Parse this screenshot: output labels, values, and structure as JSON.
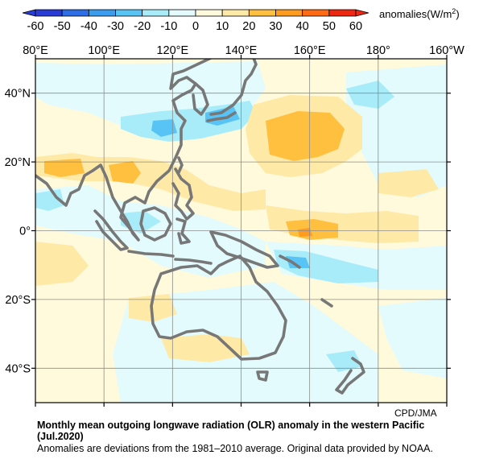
{
  "colorbar": {
    "ticks": [
      "-60",
      "-50",
      "-40",
      "-30",
      "-20",
      "-10",
      "0",
      "10",
      "20",
      "30",
      "40",
      "50",
      "60"
    ],
    "unit_label": "anomalies(W/m",
    "unit_sup": "2",
    "unit_close": ")",
    "colors": [
      "#2a3cd6",
      "#2e6ee6",
      "#3a9df0",
      "#58c4f6",
      "#a8ecfa",
      "#e3fbfd",
      "#fffadb",
      "#ffe9a6",
      "#ffbf3f",
      "#ff9c1f",
      "#ff6a12",
      "#ee2810"
    ]
  },
  "map": {
    "lon_labels": [
      "80°E",
      "100°E",
      "120°E",
      "140°E",
      "160°E",
      "180°",
      "160°W"
    ],
    "lat_labels": [
      "40°N",
      "20°N",
      "0°",
      "20°S",
      "40°S"
    ],
    "lon_values": [
      80,
      100,
      120,
      140,
      160,
      180,
      200
    ],
    "lat_values": [
      40,
      20,
      0,
      -20,
      -40
    ],
    "lon_range": [
      80,
      200
    ],
    "lat_range": [
      -50,
      50
    ],
    "grid": true,
    "coast_color": "#777777"
  },
  "footer": {
    "credit": "CPD/JMA",
    "title": "Monthly mean outgoing longwave radiation (OLR) anomaly in the western Pacific (Jul.2020)",
    "note": "Anomalies are deviations from the 1981–2010 average. Original data provided by NOAA."
  }
}
